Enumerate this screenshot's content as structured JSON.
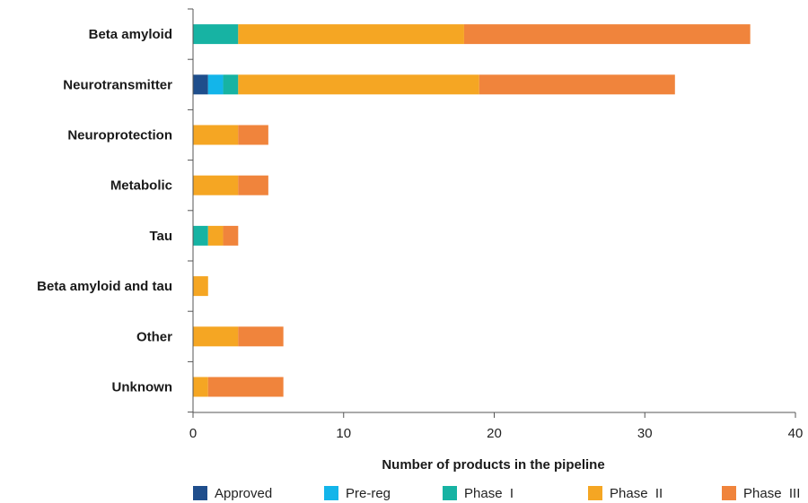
{
  "chart_data": {
    "type": "bar",
    "orientation": "horizontal",
    "stacked": true,
    "title": "",
    "xlabel": "Number of products in the pipeline",
    "ylabel": "",
    "xlim": [
      0,
      40
    ],
    "xticks": [
      0,
      10,
      20,
      30,
      40
    ],
    "grid": false,
    "legend_position": "bottom",
    "categories": [
      "Beta amyloid",
      "Neurotransmitter",
      "Neuroprotection",
      "Metabolic",
      "Tau",
      "Beta amyloid and tau",
      "Other",
      "Unknown"
    ],
    "series": [
      {
        "name": "Approved",
        "color": "#1f4e8c",
        "values": [
          0,
          1,
          0,
          0,
          0,
          0,
          0,
          0
        ]
      },
      {
        "name": "Pre-reg",
        "color": "#13b5ea",
        "values": [
          0,
          1,
          0,
          0,
          0,
          0,
          0,
          0
        ]
      },
      {
        "name": "Phase  I",
        "color": "#17b3a3",
        "values": [
          3,
          1,
          0,
          0,
          1,
          0,
          0,
          0
        ]
      },
      {
        "name": "Phase  II",
        "color": "#f5a623",
        "values": [
          15,
          16,
          3,
          3,
          1,
          1,
          3,
          1
        ]
      },
      {
        "name": "Phase  III",
        "color": "#f0843c",
        "values": [
          19,
          13,
          2,
          2,
          1,
          0,
          3,
          5
        ]
      }
    ]
  }
}
